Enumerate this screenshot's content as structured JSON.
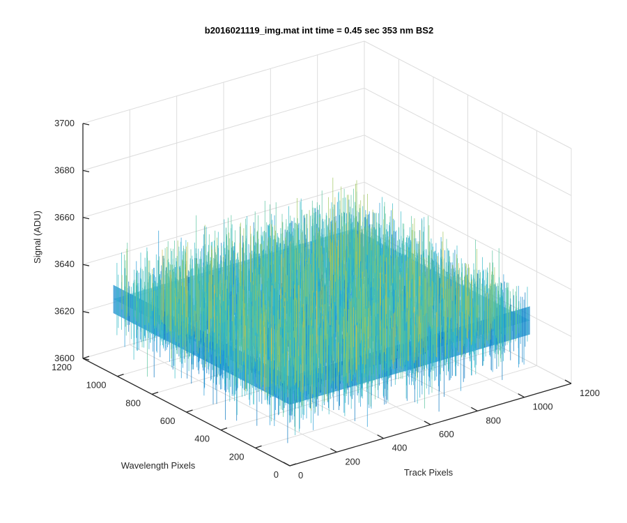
{
  "chart_data": {
    "type": "surface",
    "title": "b2016021119_img.mat int time = 0.45 sec  353 nm BS2",
    "xlabel": "Track Pixels",
    "ylabel": "Wavelength Pixels",
    "zlabel": "Signal (ADU)",
    "xlim": [
      0,
      1200
    ],
    "ylim": [
      0,
      1200
    ],
    "zlim": [
      3600,
      3700
    ],
    "x_ticks": [
      "0",
      "200",
      "400",
      "600",
      "800",
      "1000",
      "1200"
    ],
    "y_ticks": [
      "0",
      "200",
      "400",
      "600",
      "800",
      "1000",
      "1200"
    ],
    "z_ticks": [
      "3600",
      "3620",
      "3640",
      "3660",
      "3680",
      "3700"
    ],
    "grid": true,
    "surface_extent_x": [
      0,
      1024
    ],
    "surface_extent_y": [
      0,
      1024
    ],
    "signal_mean": 3632,
    "signal_range": [
      3600,
      3692
    ],
    "colormap": [
      "#0072bd",
      "#1e98d6",
      "#2fb8c6",
      "#56c39c",
      "#9ec65c",
      "#d6bd4a"
    ]
  }
}
